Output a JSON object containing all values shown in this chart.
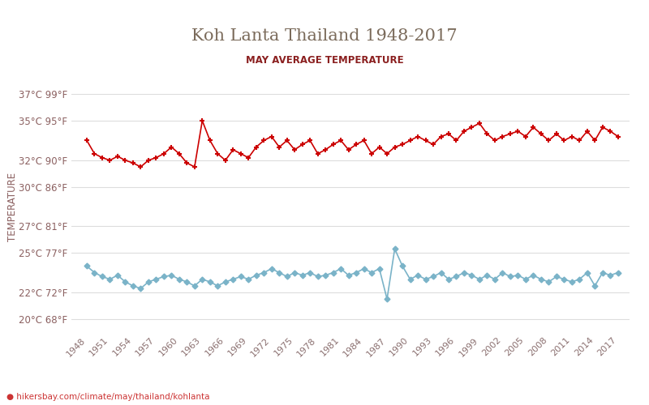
{
  "title": "Koh Lanta Thailand 1948-2017",
  "subtitle": "MAY AVERAGE TEMPERATURE",
  "ylabel": "TEMPERATURE",
  "footer": "hikersbay.com/climate/may/thailand/kohlanta",
  "years": [
    1948,
    1949,
    1950,
    1951,
    1952,
    1953,
    1954,
    1955,
    1956,
    1957,
    1958,
    1959,
    1960,
    1961,
    1962,
    1963,
    1964,
    1965,
    1966,
    1967,
    1968,
    1969,
    1970,
    1971,
    1972,
    1973,
    1974,
    1975,
    1976,
    1977,
    1978,
    1979,
    1980,
    1981,
    1982,
    1983,
    1984,
    1985,
    1986,
    1987,
    1988,
    1989,
    1990,
    1991,
    1992,
    1993,
    1994,
    1995,
    1996,
    1997,
    1998,
    1999,
    2000,
    2001,
    2002,
    2003,
    2004,
    2005,
    2006,
    2007,
    2008,
    2009,
    2010,
    2011,
    2012,
    2013,
    2014,
    2015,
    2016,
    2017
  ],
  "day_temps": [
    33.5,
    32.5,
    32.2,
    32.0,
    32.3,
    32.0,
    31.8,
    31.5,
    32.0,
    32.2,
    32.5,
    33.0,
    32.5,
    31.8,
    31.5,
    35.0,
    33.5,
    32.5,
    32.0,
    32.8,
    32.5,
    32.2,
    33.0,
    33.5,
    33.8,
    33.0,
    33.5,
    32.8,
    33.2,
    33.5,
    32.5,
    32.8,
    33.2,
    33.5,
    32.8,
    33.2,
    33.5,
    32.5,
    33.0,
    32.5,
    33.0,
    33.2,
    33.5,
    33.8,
    33.5,
    33.2,
    33.8,
    34.0,
    33.5,
    34.2,
    34.5,
    34.8,
    34.0,
    33.5,
    33.8,
    34.0,
    34.2,
    33.8,
    34.5,
    34.0,
    33.5,
    34.0,
    33.5,
    33.8,
    33.5,
    34.2,
    33.5,
    34.5,
    34.2,
    33.8
  ],
  "night_temps": [
    24.0,
    23.5,
    23.2,
    23.0,
    23.3,
    22.8,
    22.5,
    22.3,
    22.8,
    23.0,
    23.2,
    23.3,
    23.0,
    22.8,
    22.5,
    23.0,
    22.8,
    22.5,
    22.8,
    23.0,
    23.2,
    23.0,
    23.3,
    23.5,
    23.8,
    23.5,
    23.2,
    23.5,
    23.3,
    23.5,
    23.2,
    23.3,
    23.5,
    23.8,
    23.3,
    23.5,
    23.8,
    23.5,
    23.8,
    21.5,
    25.3,
    24.0,
    23.0,
    23.3,
    23.0,
    23.2,
    23.5,
    23.0,
    23.2,
    23.5,
    23.3,
    23.0,
    23.3,
    23.0,
    23.5,
    23.2,
    23.3,
    23.0,
    23.3,
    23.0,
    22.8,
    23.2,
    23.0,
    22.8,
    23.0,
    23.5,
    22.5,
    23.5,
    23.3,
    23.5
  ],
  "yticks_c": [
    20,
    22,
    25,
    27,
    30,
    32,
    35,
    37
  ],
  "yticks_f": [
    68,
    72,
    77,
    81,
    86,
    90,
    95,
    99
  ],
  "xticks": [
    1948,
    1951,
    1954,
    1957,
    1960,
    1963,
    1966,
    1969,
    1972,
    1975,
    1978,
    1981,
    1984,
    1987,
    1990,
    1993,
    1996,
    1999,
    2002,
    2005,
    2008,
    2011,
    2014,
    2017
  ],
  "day_color": "#cc0000",
  "night_color": "#7ab3c8",
  "grid_color": "#dddddd",
  "title_color": "#7a6a5a",
  "subtitle_color": "#8b2020",
  "axis_color": "#8b6060",
  "tick_color": "#8b7070",
  "bg_color": "#ffffff",
  "footer_color": "#cc3333",
  "ylim_min": 19,
  "ylim_max": 38
}
